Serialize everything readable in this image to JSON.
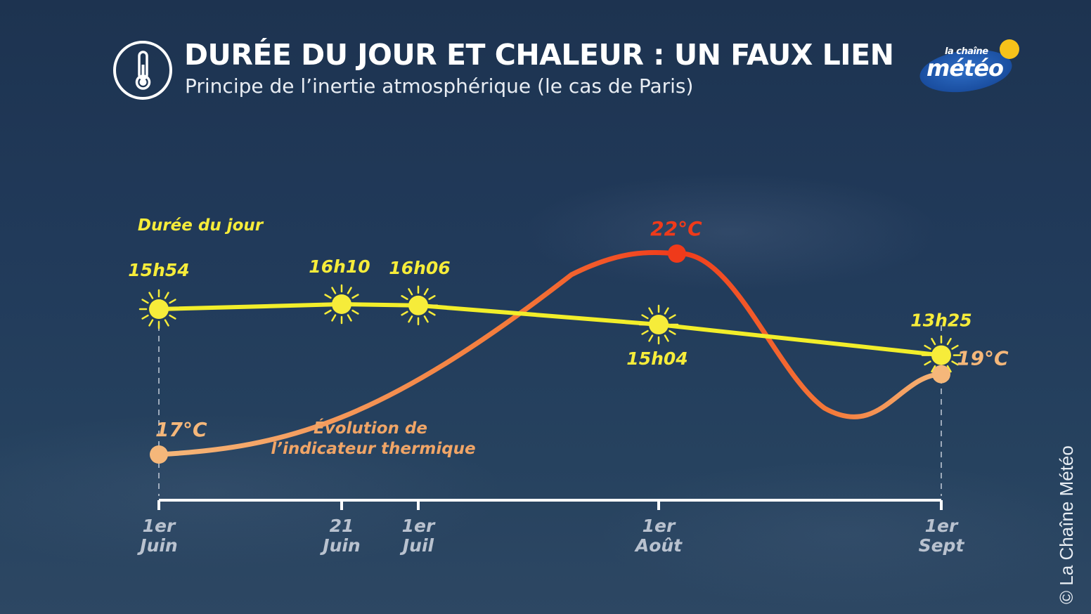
{
  "header": {
    "title": "DURÉE DU JOUR ET CHALEUR : UN FAUX LIEN",
    "subtitle": "Principe de l’inertie atmosphérique (le cas de Paris)",
    "icon": "thermometer-icon"
  },
  "logo": {
    "small": "la chaîne",
    "big": "météo",
    "icon": "sun-icon"
  },
  "credit": "© La Chaîne Météo",
  "colors": {
    "day_line": "#f2ee2a",
    "sun": "#f6ec3a",
    "temp_start": "#f5b77a",
    "temp_peak": "#f03a1a",
    "axis": "#ffffff",
    "axis_label": "#b9c2cf"
  },
  "chart_data": {
    "type": "line",
    "categories": [
      "1er Juin",
      "21 Juin",
      "1er Juil",
      "1er Août",
      "1er Sept"
    ],
    "x_labels": [
      {
        "line1": "1er",
        "line2": "Juin"
      },
      {
        "line1": "21",
        "line2": "Juin"
      },
      {
        "line1": "1er",
        "line2": "Juil"
      },
      {
        "line1": "1er",
        "line2": "Août"
      },
      {
        "line1": "1er",
        "line2": "Sept"
      }
    ],
    "x_days": [
      0,
      20,
      30,
      61,
      92
    ],
    "series": [
      {
        "name": "Durée du jour",
        "unit": "h",
        "points": [
          {
            "day": 0,
            "value": 15.9,
            "label": "15h54"
          },
          {
            "day": 20,
            "value": 16.167,
            "label": "16h10"
          },
          {
            "day": 30,
            "value": 16.1,
            "label": "16h06"
          },
          {
            "day": 61,
            "value": 15.067,
            "label": "15h04"
          },
          {
            "day": 92,
            "value": 13.417,
            "label": "13h25"
          }
        ]
      },
      {
        "name": "Évolution de l’indicateur thermique",
        "name_line1": "Évolution de",
        "name_line2": "l’indicateur thermique",
        "unit": "°C",
        "points": [
          {
            "day": 0,
            "value": 17,
            "label": "17°C"
          },
          {
            "day": 63,
            "value": 22,
            "label": "22°C"
          },
          {
            "day": 92,
            "value": 19,
            "label": "19°C"
          }
        ]
      }
    ]
  }
}
